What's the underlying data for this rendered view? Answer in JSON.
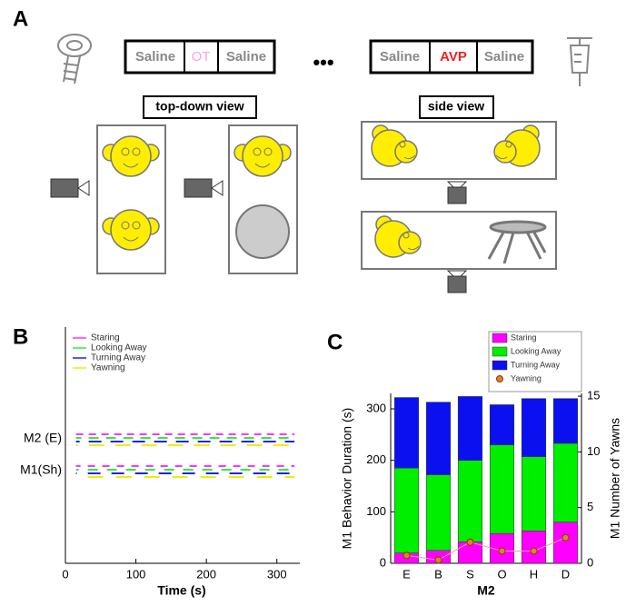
{
  "panel_labels": [
    "A",
    "B",
    "C"
  ],
  "panel_a": {
    "sequence_1": [
      "Saline",
      "OT",
      "Saline"
    ],
    "sequence_2": [
      "Saline",
      "AVP",
      "Saline"
    ],
    "ellipsis": "•••",
    "top_down_label": "top-down view",
    "side_label": "side view"
  },
  "chart_data": [
    {
      "type": "raster",
      "categories": [
        "M2 (E)",
        "M1(Sh)"
      ],
      "x_start": 15,
      "x_end": 325,
      "series": [
        {
          "name": "Staring",
          "color": "#ff33ff"
        },
        {
          "name": "Looking Away",
          "color": "#33ee33"
        },
        {
          "name": "Turning Away",
          "color": "#2222ee"
        },
        {
          "name": "Yawning",
          "color": "#eeee00"
        }
      ],
      "xlabel": "Time (s)",
      "xlim": [
        0,
        330
      ],
      "xticks": [
        0,
        100,
        200,
        300
      ]
    },
    {
      "type": "stacked_bar",
      "categories": [
        "E",
        "B",
        "S",
        "O",
        "H",
        "D"
      ],
      "xlabel": "M2",
      "ylabel": "M1 Behavior Duration (s)",
      "y2label": "M1 Number of Yawns",
      "series": [
        {
          "name": "Staring",
          "color": "#ff00ff",
          "values": [
            20,
            25,
            42,
            58,
            63,
            80
          ]
        },
        {
          "name": "Looking Away",
          "color": "#00ee00",
          "values": [
            165,
            147,
            158,
            172,
            144,
            153
          ]
        },
        {
          "name": "Turning Away",
          "color": "#0a10f0",
          "values": [
            137,
            141,
            124,
            78,
            113,
            87
          ]
        },
        {
          "name": "Yawning",
          "color": "#e08030",
          "axis": "y2",
          "values": [
            0.7,
            0.3,
            1.9,
            1.1,
            1.1,
            2.3
          ]
        }
      ],
      "ylim": [
        0,
        330
      ],
      "yticks": [
        0,
        100,
        200,
        300
      ],
      "y2lim": [
        0,
        15.25
      ],
      "y2ticks": [
        0,
        5,
        10,
        15
      ]
    }
  ]
}
